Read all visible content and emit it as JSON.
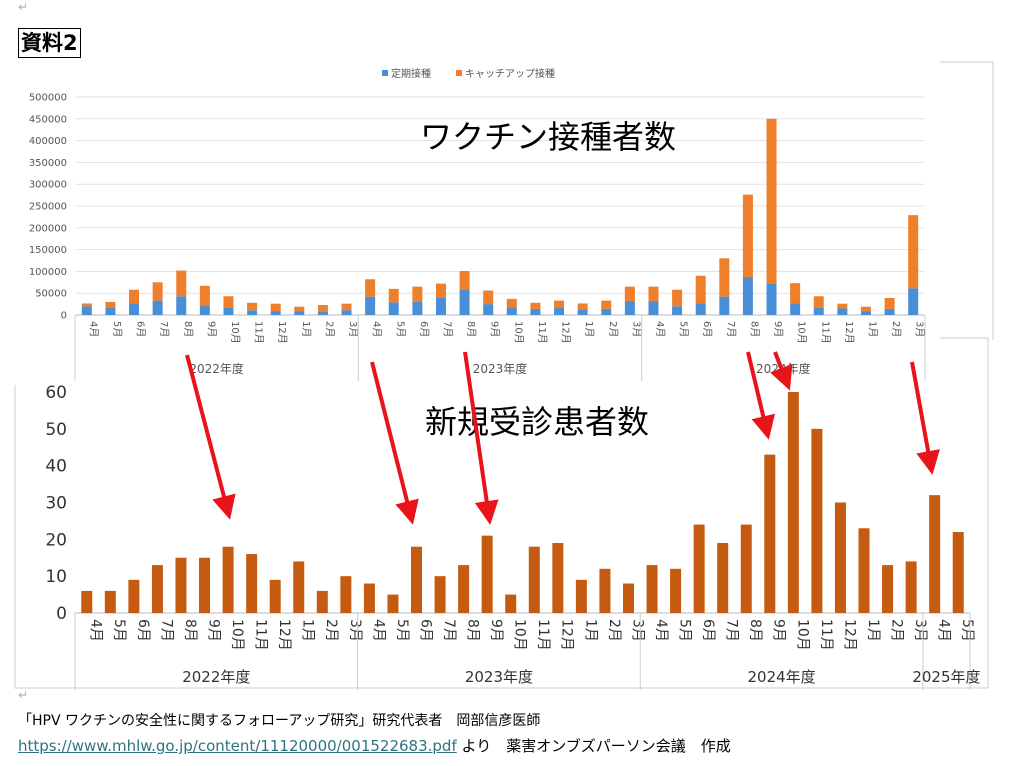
{
  "document": {
    "label": "資料2",
    "credit": "「HPV ワクチンの安全性に関するフォローアップ研究」研究代表者　岡部信彦医師",
    "source_link": "https://www.mhlw.go.jp/content/11120000/001522683.pdf",
    "source_suffix": " より　薬害オンブズパーソン会議　作成"
  },
  "colors": {
    "routine": "#4a8fd6",
    "catchup": "#f07f2c",
    "patients": "#c55a11",
    "arrow": "#e8141a"
  },
  "chart_data": [
    {
      "type": "bar",
      "stacked": true,
      "title": "ワクチン接種者数",
      "legend_position": "top",
      "ylim": [
        0,
        500000
      ],
      "yticks": [
        0,
        50000,
        100000,
        150000,
        200000,
        250000,
        300000,
        350000,
        400000,
        450000,
        500000
      ],
      "grid": true,
      "groups": [
        {
          "label": "2022年度",
          "months": [
            "4月",
            "5月",
            "6月",
            "7月",
            "8月",
            "9月",
            "10月",
            "11月",
            "12月",
            "1月",
            "2月",
            "3月"
          ]
        },
        {
          "label": "2023年度",
          "months": [
            "4月",
            "5月",
            "6月",
            "7月",
            "8月",
            "9月",
            "10月",
            "11月",
            "12月",
            "1月",
            "2月",
            "3月"
          ]
        },
        {
          "label": "2024年度",
          "months": [
            "4月",
            "5月",
            "6月",
            "7月",
            "8月",
            "9月",
            "10月",
            "11月",
            "12月",
            "1月",
            "2月",
            "3月"
          ]
        }
      ],
      "series": [
        {
          "name": "定期接種",
          "values": [
            20000,
            17000,
            26500,
            33000,
            43000,
            22000,
            17000,
            11000,
            9000,
            8000,
            7000,
            11000,
            42000,
            29000,
            30000,
            39000,
            59000,
            25000,
            18000,
            14000,
            17000,
            13000,
            14000,
            32000,
            32000,
            20000,
            26500,
            42000,
            87000,
            72000,
            26500,
            17000,
            15000,
            9000,
            14000,
            61000
          ]
        },
        {
          "name": "キャッチアップ接種",
          "values": [
            6500,
            13000,
            31500,
            42000,
            59000,
            45000,
            26000,
            17000,
            17000,
            11000,
            16000,
            15000,
            40000,
            31000,
            35000,
            33000,
            42000,
            31000,
            19000,
            14000,
            16000,
            13500,
            19000,
            33000,
            33000,
            38000,
            63500,
            88000,
            189000,
            378000,
            46500,
            26000,
            11000,
            10000,
            25000,
            168000
          ]
        }
      ]
    },
    {
      "type": "bar",
      "title": "新規受診患者数",
      "ylim": [
        0,
        60
      ],
      "yticks": [
        0,
        10,
        20,
        30,
        40,
        50,
        60
      ],
      "grid": false,
      "groups": [
        {
          "label": "2022年度",
          "months": [
            "4月",
            "5月",
            "6月",
            "7月",
            "8月",
            "9月",
            "10月",
            "11月",
            "12月",
            "1月",
            "2月",
            "3月"
          ]
        },
        {
          "label": "2023年度",
          "months": [
            "4月",
            "5月",
            "6月",
            "7月",
            "8月",
            "9月",
            "10月",
            "11月",
            "12月",
            "1月",
            "2月",
            "3月"
          ]
        },
        {
          "label": "2024年度",
          "months": [
            "4月",
            "5月",
            "6月",
            "7月",
            "8月",
            "9月",
            "10月",
            "11月",
            "12月",
            "1月",
            "2月",
            "3月"
          ]
        },
        {
          "label": "2025年度",
          "months": [
            "4月",
            "5月"
          ]
        }
      ],
      "series": [
        {
          "name": "新規受診患者数",
          "values": [
            6,
            6,
            9,
            13,
            15,
            15,
            18,
            16,
            9,
            14,
            6,
            10,
            8,
            5,
            18,
            10,
            13,
            21,
            5,
            18,
            19,
            9,
            12,
            8,
            13,
            12,
            24,
            19,
            24,
            43,
            60,
            50,
            30,
            23,
            13,
            14,
            32,
            22
          ]
        }
      ]
    }
  ]
}
